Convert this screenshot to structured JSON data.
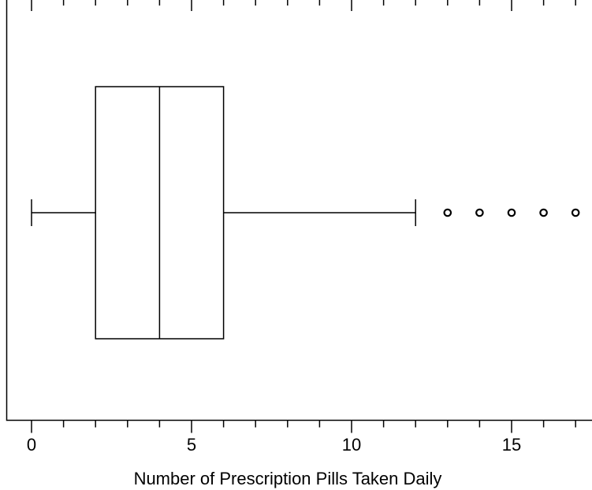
{
  "chart_data": {
    "type": "boxplot",
    "orientation": "horizontal",
    "title": "",
    "xlabel": "Number of Prescription Pills Taken Daily",
    "ylabel": "",
    "xlim": [
      -0.8,
      17.6
    ],
    "x_major_ticks": [
      0,
      5,
      10,
      15
    ],
    "x_tick_labels": [
      "0",
      "5",
      "10",
      "15"
    ],
    "x_minor_ticks": [
      0,
      1,
      2,
      3,
      4,
      5,
      6,
      7,
      8,
      9,
      10,
      11,
      12,
      13,
      14,
      15,
      16,
      17
    ],
    "grid": false,
    "legend": "none",
    "box": {
      "whisker_low": 0,
      "q1": 2,
      "median": 4,
      "q3": 6,
      "whisker_high": 12,
      "outliers": [
        13,
        14,
        15,
        16,
        17
      ]
    },
    "colors": {
      "stroke": "#000000",
      "background": "#ffffff"
    }
  }
}
